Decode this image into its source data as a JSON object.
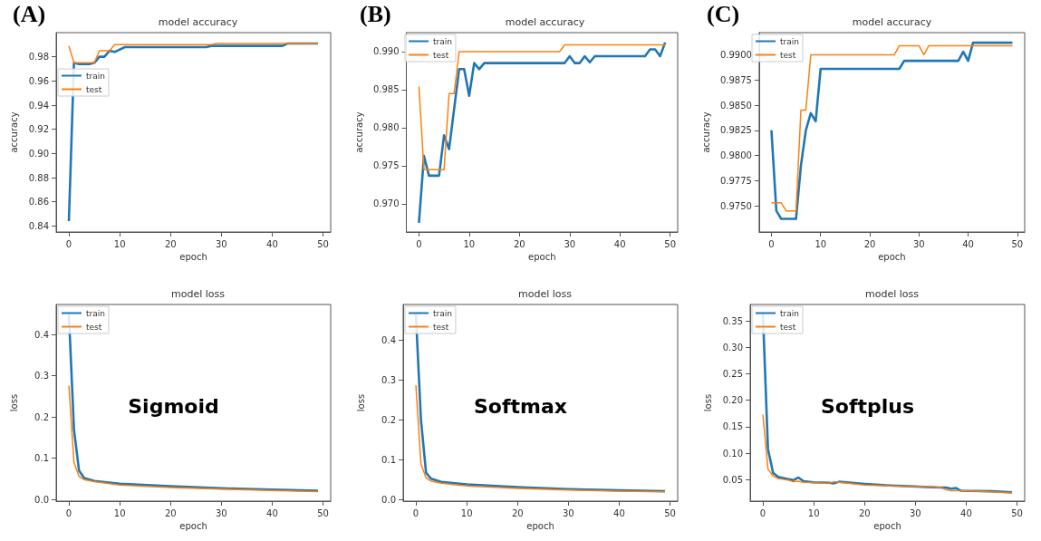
{
  "chart_data": [
    {
      "type": "line",
      "title": "model accuracy",
      "xlabel": "epoch",
      "ylabel": "accuracy",
      "annotations": [
        "(A)"
      ],
      "legend": "top left",
      "grid": false,
      "xlim": [
        -2.5,
        51.5
      ],
      "xticks": [
        0,
        10,
        20,
        30,
        40,
        50
      ],
      "ylim": [
        0.835,
        1.0
      ],
      "yticks": [
        0.84,
        0.86,
        0.88,
        {
          "value": 0.9,
          "label": "0.90"
        },
        0.92,
        0.94,
        0.96,
        0.98
      ],
      "series": [
        {
          "name": "train",
          "color": "#1f77b4",
          "x": [
            0,
            1,
            2,
            4,
            5,
            6,
            7,
            8,
            9,
            11,
            27,
            28,
            42,
            43,
            49
          ],
          "values": [
            0.844,
            0.975,
            0.974,
            0.974,
            0.975,
            0.98,
            0.98,
            0.985,
            0.984,
            0.988,
            0.988,
            0.989,
            0.989,
            0.991,
            0.991
          ]
        },
        {
          "name": "test",
          "color": "#ff7f0e",
          "x": [
            0,
            1,
            5,
            6,
            8,
            9,
            28,
            29,
            49
          ],
          "values": [
            0.989,
            0.975,
            0.975,
            0.985,
            0.985,
            0.99,
            0.99,
            0.991,
            0.991
          ]
        }
      ]
    },
    {
      "type": "line",
      "title": "model accuracy",
      "xlabel": "epoch",
      "ylabel": "accuracy",
      "annotations": [
        "(B)"
      ],
      "legend": "top left",
      "grid": false,
      "xlim": [
        -2.5,
        51.5
      ],
      "xticks": [
        0,
        10,
        20,
        30,
        40,
        50
      ],
      "ylim": [
        0.9663,
        0.9925
      ],
      "yticks": [
        {
          "value": 0.97,
          "label": "0.970"
        },
        0.975,
        {
          "value": 0.98,
          "label": "0.980"
        },
        0.985,
        {
          "value": 0.99,
          "label": "0.990"
        }
      ],
      "series": [
        {
          "name": "train",
          "color": "#1f77b4",
          "x": [
            0,
            1,
            2,
            4,
            5,
            6,
            8,
            9,
            10,
            11,
            12,
            13,
            29,
            30,
            31,
            32,
            33,
            34,
            35,
            45,
            46,
            47,
            48,
            49
          ],
          "values": [
            0.9675,
            0.9763,
            0.9737,
            0.9737,
            0.979,
            0.9772,
            0.9877,
            0.9877,
            0.9842,
            0.9885,
            0.9877,
            0.9885,
            0.9885,
            0.9894,
            0.9885,
            0.9885,
            0.9894,
            0.9886,
            0.9894,
            0.9894,
            0.9903,
            0.9903,
            0.9894,
            0.9912
          ]
        },
        {
          "name": "test",
          "color": "#ff7f0e",
          "x": [
            0,
            1,
            5,
            6,
            7,
            8,
            28,
            29,
            49
          ],
          "values": [
            0.9854,
            0.9745,
            0.9745,
            0.9845,
            0.9845,
            0.99,
            0.99,
            0.9909,
            0.9909
          ]
        }
      ]
    },
    {
      "type": "line",
      "title": "model accuracy",
      "xlabel": "epoch",
      "ylabel": "accuracy",
      "annotations": [
        "(C)"
      ],
      "legend": "top left",
      "grid": false,
      "xlim": [
        -2.5,
        51.5
      ],
      "xticks": [
        0,
        10,
        20,
        30,
        40,
        50
      ],
      "ylim": [
        0.9724,
        0.9922
      ],
      "yticks": [
        {
          "value": 0.975,
          "label": "0.9750"
        },
        {
          "value": 0.9775,
          "label": "0.9775"
        },
        {
          "value": 0.98,
          "label": "0.9800"
        },
        {
          "value": 0.9825,
          "label": "0.9825"
        },
        {
          "value": 0.985,
          "label": "0.9850"
        },
        {
          "value": 0.9875,
          "label": "0.9875"
        },
        {
          "value": 0.99,
          "label": "0.9900"
        }
      ],
      "series": [
        {
          "name": "train",
          "color": "#1f77b4",
          "x": [
            0,
            1,
            2,
            5,
            6,
            7,
            8,
            9,
            10,
            26,
            27,
            38,
            39,
            40,
            41,
            49
          ],
          "values": [
            0.9825,
            0.9745,
            0.9737,
            0.9737,
            0.979,
            0.9825,
            0.9842,
            0.9834,
            0.9886,
            0.9886,
            0.9894,
            0.9894,
            0.9903,
            0.9894,
            0.9912,
            0.9912
          ]
        },
        {
          "name": "test",
          "color": "#ff7f0e",
          "x": [
            0,
            2,
            3,
            5,
            6,
            7,
            8,
            25,
            26,
            30,
            31,
            32,
            49
          ],
          "values": [
            0.9753,
            0.9753,
            0.9745,
            0.9745,
            0.9845,
            0.9845,
            0.99,
            0.99,
            0.9909,
            0.9909,
            0.99,
            0.9909,
            0.9909
          ]
        }
      ]
    },
    {
      "type": "line",
      "title": "model loss",
      "xlabel": "epoch",
      "ylabel": "loss",
      "annotations": [
        "Sigmoid"
      ],
      "legend": "top left",
      "grid": false,
      "xlim": [
        -2.5,
        51.5
      ],
      "xticks": [
        0,
        10,
        20,
        30,
        40,
        50
      ],
      "ylim": [
        -0.004,
        0.473
      ],
      "yticks": [
        {
          "value": 0,
          "label": "0.0"
        },
        0.1,
        0.2,
        0.3,
        0.4
      ],
      "series": [
        {
          "name": "train",
          "color": "#1f77b4",
          "x": [
            0,
            1,
            2,
            3,
            5,
            10,
            20,
            30,
            40,
            49
          ],
          "values": [
            0.45,
            0.17,
            0.07,
            0.052,
            0.045,
            0.038,
            0.032,
            0.027,
            0.024,
            0.021
          ]
        },
        {
          "name": "test",
          "color": "#ff7f0e",
          "x": [
            0,
            1,
            2,
            3,
            5,
            10,
            20,
            30,
            40,
            49
          ],
          "values": [
            0.276,
            0.09,
            0.056,
            0.048,
            0.043,
            0.035,
            0.029,
            0.025,
            0.022,
            0.019
          ]
        }
      ]
    },
    {
      "type": "line",
      "title": "model loss",
      "xlabel": "epoch",
      "ylabel": "loss",
      "annotations": [
        "Softmax"
      ],
      "legend": "top left",
      "grid": false,
      "xlim": [
        -2.5,
        51.5
      ],
      "xticks": [
        0,
        10,
        20,
        30,
        40,
        50
      ],
      "ylim": [
        -0.003,
        0.489
      ],
      "yticks": [
        {
          "value": 0,
          "label": "0.0"
        },
        0.1,
        0.2,
        0.3,
        0.4
      ],
      "series": [
        {
          "name": "train",
          "color": "#1f77b4",
          "x": [
            0,
            1,
            2,
            3,
            5,
            10,
            20,
            30,
            40,
            49
          ],
          "values": [
            0.465,
            0.2,
            0.068,
            0.053,
            0.045,
            0.039,
            0.032,
            0.027,
            0.024,
            0.022
          ]
        },
        {
          "name": "test",
          "color": "#ff7f0e",
          "x": [
            0,
            1,
            2,
            3,
            5,
            10,
            20,
            30,
            40,
            49
          ],
          "values": [
            0.287,
            0.09,
            0.055,
            0.047,
            0.042,
            0.035,
            0.029,
            0.025,
            0.022,
            0.02
          ]
        }
      ]
    },
    {
      "type": "line",
      "title": "model loss",
      "xlabel": "epoch",
      "ylabel": "loss",
      "annotations": [
        "Softplus"
      ],
      "legend": "top left",
      "grid": false,
      "xlim": [
        -2.5,
        51.5
      ],
      "xticks": [
        0,
        10,
        20,
        30,
        40,
        50
      ],
      "ylim": [
        0.0094,
        0.381
      ],
      "yticks": [
        0.05,
        {
          "value": 0.1,
          "label": "0.10"
        },
        0.15,
        {
          "value": 0.2,
          "label": "0.20"
        },
        0.25,
        {
          "value": 0.3,
          "label": "0.30"
        },
        0.35
      ],
      "series": [
        {
          "name": "train",
          "color": "#1f77b4",
          "x": [
            0,
            1,
            2,
            3,
            5,
            6,
            7,
            8,
            10,
            13,
            14,
            15,
            20,
            25,
            30,
            35,
            36,
            37,
            38,
            39,
            45,
            49
          ],
          "values": [
            0.365,
            0.108,
            0.063,
            0.055,
            0.051,
            0.049,
            0.054,
            0.047,
            0.045,
            0.044,
            0.043,
            0.046,
            0.042,
            0.039,
            0.037,
            0.035,
            0.035,
            0.033,
            0.034,
            0.029,
            0.028,
            0.026
          ]
        },
        {
          "name": "test",
          "color": "#ff7f0e",
          "x": [
            0,
            1,
            2,
            3,
            5,
            6,
            7,
            8,
            10,
            13,
            14,
            15,
            20,
            25,
            30,
            33,
            35,
            36,
            37,
            40,
            45,
            49
          ],
          "values": [
            0.173,
            0.07,
            0.057,
            0.052,
            0.049,
            0.046,
            0.047,
            0.045,
            0.044,
            0.043,
            0.046,
            0.045,
            0.04,
            0.038,
            0.037,
            0.037,
            0.035,
            0.031,
            0.029,
            0.029,
            0.027,
            0.025
          ]
        }
      ]
    }
  ]
}
